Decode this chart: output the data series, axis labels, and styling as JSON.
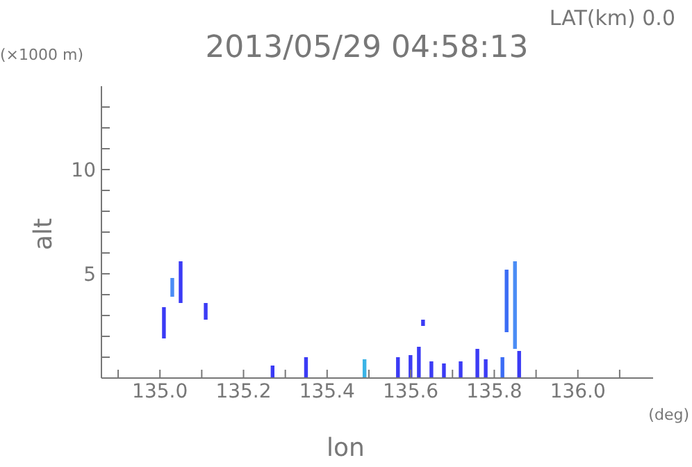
{
  "chart_data": {
    "type": "bar",
    "title": "2013/05/29 04:58:13",
    "xlabel": "lon",
    "ylabel": "alt",
    "annotations": [
      "LAT(km) 0.0",
      "(×1000 m)",
      "(deg)"
    ],
    "x": [
      135.01,
      135.03,
      135.05,
      135.11,
      135.27,
      135.35,
      135.49,
      135.57,
      135.6,
      135.62,
      135.63,
      135.65,
      135.68,
      135.72,
      135.76,
      135.78,
      135.82,
      135.83,
      135.85,
      135.86
    ],
    "base": [
      1.9,
      3.9,
      3.6,
      2.8,
      0,
      0,
      0,
      0,
      0,
      0,
      2.5,
      0,
      0,
      0,
      0,
      0,
      0,
      2.2,
      1.4,
      0
    ],
    "values": [
      1.5,
      0.9,
      2.0,
      0.8,
      0.6,
      1.0,
      0.9,
      1.0,
      1.1,
      1.5,
      0.3,
      0.8,
      0.7,
      0.8,
      1.4,
      0.9,
      1.0,
      3.0,
      4.2,
      1.3
    ],
    "colors": [
      "#3b3bf5",
      "#4a8cf5",
      "#3b3bf5",
      "#3b3bf5",
      "#3b3bf5",
      "#3b3bf5",
      "#3bb4e6",
      "#3b3bf5",
      "#3b3bf5",
      "#3b3bf5",
      "#3b3bf5",
      "#3b3bf5",
      "#3b3bf5",
      "#3b3bf5",
      "#3b3bf5",
      "#3b3bf5",
      "#3b6cf5",
      "#3b6cf5",
      "#4a8cf5",
      "#3b3bf5"
    ],
    "xlim": [
      134.86,
      136.18
    ],
    "xticks": [
      {
        "value": 134.9,
        "label": null
      },
      {
        "value": 135.0,
        "label": "135.0"
      },
      {
        "value": 135.1,
        "label": null
      },
      {
        "value": 135.2,
        "label": "135.2"
      },
      {
        "value": 135.3,
        "label": null
      },
      {
        "value": 135.4,
        "label": "135.4"
      },
      {
        "value": 135.5,
        "label": null
      },
      {
        "value": 135.6,
        "label": "135.6"
      },
      {
        "value": 135.7,
        "label": null
      },
      {
        "value": 135.8,
        "label": "135.8"
      },
      {
        "value": 135.9,
        "label": null
      },
      {
        "value": 136.0,
        "label": "136.0"
      },
      {
        "value": 136.1,
        "label": null
      }
    ],
    "ylim": [
      0,
      14
    ],
    "yticks": [
      {
        "value": 1,
        "label": null
      },
      {
        "value": 2,
        "label": null
      },
      {
        "value": 3,
        "label": null
      },
      {
        "value": 4,
        "label": null
      },
      5,
      {
        "value": 6,
        "label": null
      },
      {
        "value": 7,
        "label": null
      },
      {
        "value": 8,
        "label": null
      },
      {
        "value": 9,
        "label": null
      },
      10,
      {
        "value": 11,
        "label": null
      },
      {
        "value": 12,
        "label": null
      },
      {
        "value": 13,
        "label": null
      }
    ]
  }
}
